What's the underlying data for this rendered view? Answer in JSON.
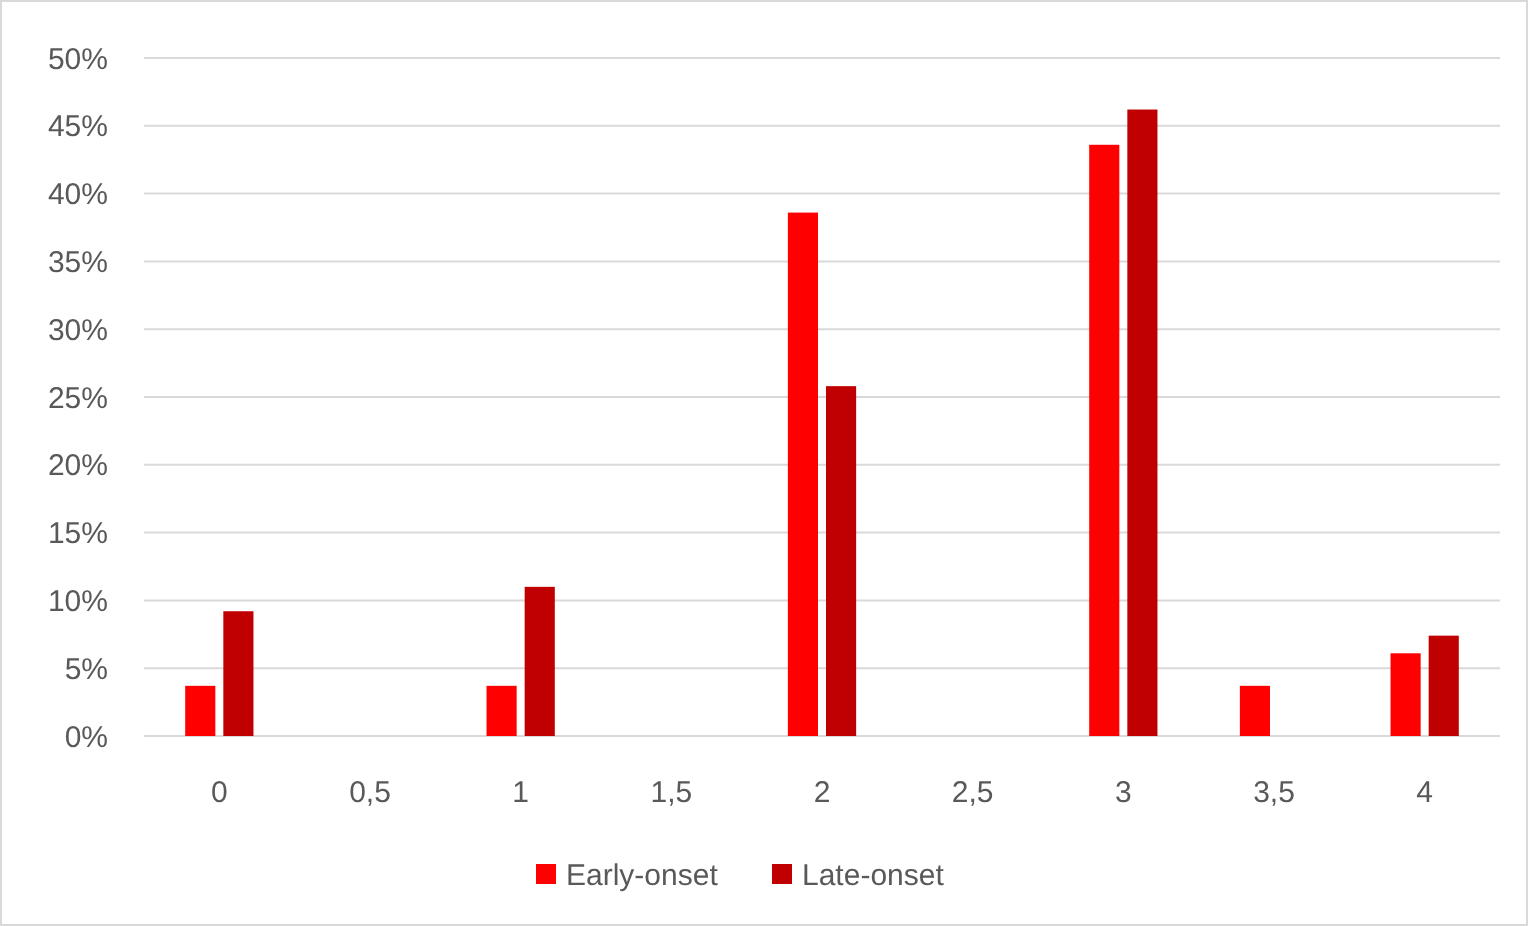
{
  "chart_data": {
    "type": "bar",
    "categories": [
      "0",
      "0,5",
      "1",
      "1,5",
      "2",
      "2,5",
      "3",
      "3,5",
      "4"
    ],
    "series": [
      {
        "name": "Early-onset",
        "color": "#ff0000",
        "values": [
          3.7,
          null,
          3.7,
          null,
          38.6,
          null,
          43.6,
          3.7,
          6.1
        ]
      },
      {
        "name": "Late-onset",
        "color": "#c00000",
        "values": [
          9.2,
          null,
          11.0,
          null,
          25.8,
          null,
          46.2,
          null,
          7.4
        ]
      }
    ],
    "ylim": [
      0,
      50
    ],
    "yticks": [
      {
        "value": 0,
        "label": "0%"
      },
      {
        "value": 5,
        "label": "5%"
      },
      {
        "value": 10,
        "label": "10%"
      },
      {
        "value": 15,
        "label": "15%"
      },
      {
        "value": 20,
        "label": "20%"
      },
      {
        "value": 25,
        "label": "25%"
      },
      {
        "value": 30,
        "label": "30%"
      },
      {
        "value": 35,
        "label": "35%"
      },
      {
        "value": 40,
        "label": "40%"
      },
      {
        "value": 45,
        "label": "45%"
      },
      {
        "value": 50,
        "label": "50%"
      }
    ],
    "grid": "y",
    "legend": "bottom"
  }
}
